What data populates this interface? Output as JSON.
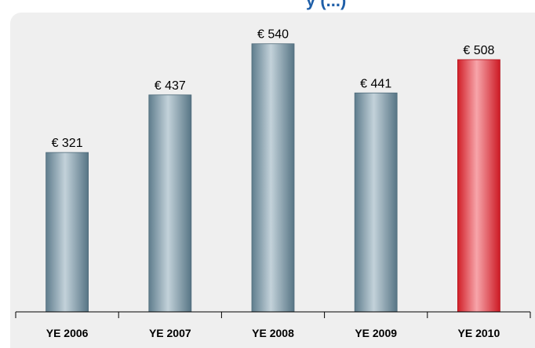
{
  "chart_data": {
    "type": "bar",
    "title": "",
    "title_fragment": "y (...)",
    "xlabel": "",
    "ylabel": "",
    "categories": [
      "YE 2006",
      "YE 2007",
      "YE 2008",
      "YE 2009",
      "YE 2010"
    ],
    "values": [
      321,
      437,
      540,
      441,
      508
    ],
    "value_labels": [
      "€ 321",
      "€ 437",
      "€ 540",
      "€ 441",
      "€ 508"
    ],
    "ylim": [
      0,
      600
    ],
    "grid": false,
    "legend": "none",
    "colors": {
      "default_bar": "#7d98a6",
      "highlight_bar": "#e0303a",
      "title_text": "#1f5fa8",
      "panel_background": "#efefef"
    },
    "highlight_category": "YE 2010"
  }
}
